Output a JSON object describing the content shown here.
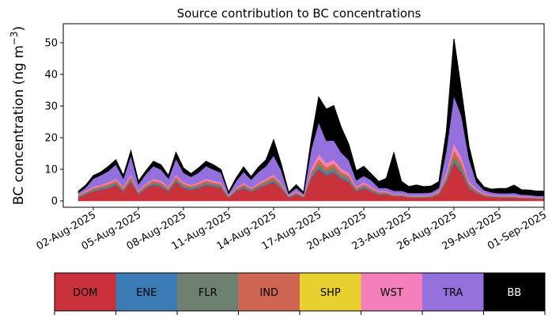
{
  "chart_data": {
    "type": "area",
    "stacked": true,
    "title": "Source contribution to BC concentrations",
    "xlabel": "",
    "ylabel": "BC concentration (ng m",
    "ylabel_sup": "−3",
    "ylabel_close": ")",
    "xlim": [
      "2025-07-31",
      "2025-09-01"
    ],
    "ylim": [
      -2,
      56
    ],
    "yticks": [
      0,
      10,
      20,
      30,
      40,
      50
    ],
    "ytick_labels": [
      "0",
      "10",
      "20",
      "30",
      "40",
      "50"
    ],
    "xticks": [
      "2025-08-02",
      "2025-08-05",
      "2025-08-08",
      "2025-08-11",
      "2025-08-14",
      "2025-08-17",
      "2025-08-20",
      "2025-08-23",
      "2025-08-26",
      "2025-08-29",
      "2025-09-01"
    ],
    "xtick_labels": [
      "02-Aug-2025",
      "05-Aug-2025",
      "08-Aug-2025",
      "11-Aug-2025",
      "14-Aug-2025",
      "17-Aug-2025",
      "20-Aug-2025",
      "23-Aug-2025",
      "26-Aug-2025",
      "29-Aug-2025",
      "01-Sep-2025"
    ],
    "grid": false,
    "legend": "colorbar-bottom",
    "x": [
      "2025-08-01",
      "2025-08-01T12:00",
      "2025-08-02",
      "2025-08-02T12:00",
      "2025-08-03",
      "2025-08-03T12:00",
      "2025-08-04",
      "2025-08-04T12:00",
      "2025-08-05",
      "2025-08-05T12:00",
      "2025-08-06",
      "2025-08-06T12:00",
      "2025-08-07",
      "2025-08-07T12:00",
      "2025-08-08",
      "2025-08-08T12:00",
      "2025-08-09",
      "2025-08-09T12:00",
      "2025-08-10",
      "2025-08-10T12:00",
      "2025-08-11",
      "2025-08-11T12:00",
      "2025-08-12",
      "2025-08-12T12:00",
      "2025-08-13",
      "2025-08-13T12:00",
      "2025-08-14",
      "2025-08-14T12:00",
      "2025-08-15",
      "2025-08-15T12:00",
      "2025-08-16",
      "2025-08-16T12:00",
      "2025-08-17",
      "2025-08-17T12:00",
      "2025-08-18",
      "2025-08-18T12:00",
      "2025-08-19",
      "2025-08-19T12:00",
      "2025-08-20",
      "2025-08-20T12:00",
      "2025-08-21",
      "2025-08-21T12:00",
      "2025-08-22",
      "2025-08-22T12:00",
      "2025-08-23",
      "2025-08-23T12:00",
      "2025-08-24",
      "2025-08-24T12:00",
      "2025-08-25",
      "2025-08-25T12:00",
      "2025-08-26",
      "2025-08-26T12:00",
      "2025-08-27",
      "2025-08-27T12:00",
      "2025-08-28",
      "2025-08-28T12:00",
      "2025-08-29",
      "2025-08-29T12:00",
      "2025-08-30",
      "2025-08-30T12:00",
      "2025-08-31",
      "2025-08-31T12:00",
      "2025-09-01"
    ],
    "series": [
      {
        "name": "DOM",
        "color": "#c9313b",
        "values": [
          1.0,
          2.0,
          3.0,
          3.5,
          4.0,
          5.0,
          3.0,
          6.0,
          2.0,
          4.0,
          5.0,
          4.5,
          3.0,
          6.0,
          4.0,
          3.5,
          4.0,
          5.0,
          4.5,
          4.0,
          1.0,
          3.0,
          4.0,
          3.0,
          4.0,
          5.0,
          6.0,
          4.0,
          1.0,
          2.0,
          1.0,
          7.0,
          10.0,
          8.0,
          9.0,
          7.0,
          6.0,
          3.0,
          4.0,
          3.0,
          2.0,
          2.0,
          1.5,
          1.5,
          1.0,
          1.0,
          1.0,
          1.2,
          2.0,
          6.0,
          12.0,
          9.0,
          4.0,
          2.5,
          1.5,
          1.2,
          1.0,
          1.0,
          1.0,
          0.8,
          0.8,
          0.7,
          0.7
        ]
      },
      {
        "name": "ENE",
        "color": "#3a7ab5",
        "values": [
          0.2,
          0.2,
          0.2,
          0.3,
          0.3,
          0.3,
          0.2,
          0.3,
          0.2,
          0.2,
          0.3,
          0.3,
          0.2,
          0.3,
          0.3,
          0.3,
          0.3,
          0.3,
          0.3,
          0.3,
          0.1,
          0.2,
          0.3,
          0.2,
          0.3,
          0.3,
          0.3,
          0.3,
          0.1,
          0.2,
          0.1,
          0.4,
          0.5,
          0.5,
          0.5,
          0.4,
          0.4,
          0.2,
          0.3,
          0.2,
          0.2,
          0.2,
          0.1,
          0.1,
          0.1,
          0.1,
          0.1,
          0.1,
          0.2,
          0.4,
          0.6,
          0.5,
          0.3,
          0.2,
          0.1,
          0.1,
          0.1,
          0.1,
          0.1,
          0.1,
          0.1,
          0.1,
          0.1
        ]
      },
      {
        "name": "FLR",
        "color": "#6e8170",
        "values": [
          0.3,
          0.3,
          0.4,
          0.4,
          0.5,
          0.5,
          0.4,
          0.6,
          0.3,
          0.4,
          0.5,
          0.5,
          0.4,
          0.6,
          0.5,
          0.4,
          0.5,
          0.5,
          0.5,
          0.5,
          0.2,
          0.3,
          0.4,
          0.3,
          0.4,
          0.5,
          0.6,
          0.4,
          0.2,
          0.3,
          0.2,
          0.8,
          1.2,
          1.0,
          1.0,
          0.8,
          0.7,
          0.4,
          0.5,
          0.4,
          0.3,
          0.3,
          0.2,
          0.2,
          0.2,
          0.2,
          0.2,
          0.2,
          0.3,
          0.7,
          1.5,
          1.2,
          0.6,
          0.3,
          0.2,
          0.2,
          0.2,
          0.2,
          0.2,
          0.1,
          0.1,
          0.1,
          0.1
        ]
      },
      {
        "name": "IND",
        "color": "#cf6654",
        "values": [
          0.3,
          0.4,
          0.5,
          0.5,
          0.6,
          0.7,
          0.5,
          0.8,
          0.4,
          0.5,
          0.7,
          0.6,
          0.5,
          0.8,
          0.6,
          0.5,
          0.6,
          0.7,
          0.6,
          0.6,
          0.2,
          0.4,
          0.6,
          0.4,
          0.6,
          0.7,
          0.8,
          0.6,
          0.2,
          0.3,
          0.2,
          1.0,
          1.5,
          1.2,
          1.3,
          1.0,
          0.9,
          0.5,
          0.6,
          0.5,
          0.3,
          0.3,
          0.2,
          0.2,
          0.2,
          0.2,
          0.2,
          0.2,
          0.3,
          0.9,
          2.0,
          1.5,
          0.7,
          0.4,
          0.3,
          0.2,
          0.2,
          0.2,
          0.2,
          0.2,
          0.2,
          0.1,
          0.1
        ]
      },
      {
        "name": "SHP",
        "color": "#e8d12f",
        "values": [
          0.0,
          0.0,
          0.0,
          0.0,
          0.0,
          0.0,
          0.0,
          0.0,
          0.0,
          0.0,
          0.0,
          0.0,
          0.0,
          0.0,
          0.0,
          0.0,
          0.0,
          0.0,
          0.0,
          0.0,
          0.0,
          0.0,
          0.0,
          0.0,
          0.0,
          0.0,
          0.0,
          0.0,
          0.0,
          0.0,
          0.0,
          0.1,
          0.1,
          0.1,
          0.1,
          0.1,
          0.1,
          0.0,
          0.0,
          0.0,
          0.0,
          0.0,
          0.0,
          0.0,
          0.0,
          0.0,
          0.0,
          0.0,
          0.0,
          0.1,
          0.1,
          0.1,
          0.0,
          0.0,
          0.0,
          0.0,
          0.0,
          0.0,
          0.0,
          0.0,
          0.0,
          0.0,
          0.0
        ]
      },
      {
        "name": "WST",
        "color": "#f47fbd",
        "values": [
          0.2,
          0.3,
          0.4,
          0.4,
          0.5,
          0.5,
          0.4,
          0.6,
          0.3,
          0.4,
          0.5,
          0.5,
          0.4,
          0.6,
          0.5,
          0.4,
          0.5,
          0.5,
          0.5,
          0.5,
          0.2,
          0.3,
          0.4,
          0.3,
          0.4,
          0.5,
          0.6,
          0.4,
          0.2,
          0.3,
          0.2,
          0.9,
          1.5,
          1.2,
          1.2,
          0.9,
          0.8,
          0.4,
          0.5,
          0.4,
          0.3,
          0.3,
          0.2,
          0.2,
          0.2,
          0.2,
          0.2,
          0.2,
          0.3,
          0.9,
          2.0,
          1.5,
          0.7,
          0.4,
          0.3,
          0.2,
          0.2,
          0.2,
          0.2,
          0.2,
          0.2,
          0.1,
          0.1
        ]
      },
      {
        "name": "TRA",
        "color": "#9370db",
        "values": [
          0.5,
          1.0,
          2.5,
          3.0,
          3.5,
          4.5,
          2.5,
          6.0,
          2.0,
          3.0,
          4.0,
          3.5,
          2.5,
          5.0,
          3.0,
          2.5,
          3.0,
          4.0,
          3.5,
          3.0,
          0.5,
          2.0,
          3.5,
          2.5,
          3.5,
          4.0,
          6.0,
          4.0,
          0.5,
          1.0,
          0.5,
          6.0,
          10.0,
          7.0,
          6.0,
          5.0,
          4.0,
          2.0,
          2.0,
          2.0,
          1.0,
          1.0,
          1.0,
          1.0,
          0.8,
          0.8,
          0.8,
          0.8,
          1.0,
          7.0,
          15.0,
          13.0,
          7.0,
          2.0,
          1.0,
          0.8,
          0.7,
          0.7,
          0.8,
          0.6,
          0.5,
          0.5,
          0.5
        ]
      },
      {
        "name": "BB",
        "color": "#000000",
        "values": [
          0.5,
          0.8,
          1.0,
          1.0,
          1.5,
          1.5,
          1.0,
          1.5,
          1.0,
          1.0,
          1.5,
          1.5,
          1.0,
          2.0,
          1.5,
          1.0,
          1.5,
          1.5,
          1.5,
          1.0,
          0.5,
          1.0,
          1.5,
          1.0,
          1.5,
          2.0,
          5.0,
          2.0,
          0.5,
          1.0,
          0.5,
          3.0,
          8.0,
          10.0,
          11.0,
          8.0,
          5.0,
          3.0,
          3.0,
          2.0,
          2.0,
          3.0,
          12.0,
          3.0,
          2.0,
          2.5,
          2.0,
          2.0,
          2.0,
          6.0,
          18.0,
          8.0,
          4.0,
          1.5,
          1.0,
          1.0,
          1.5,
          1.5,
          2.5,
          1.5,
          1.5,
          1.5,
          1.5
        ]
      }
    ]
  }
}
